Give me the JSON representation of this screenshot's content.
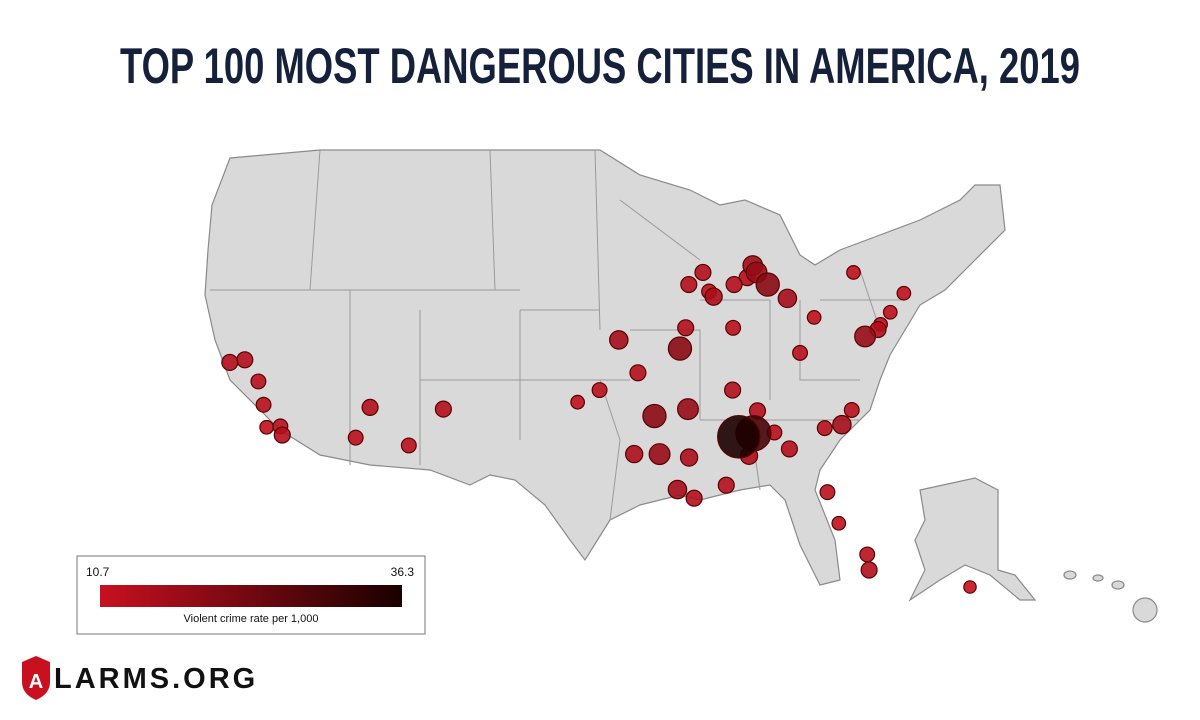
{
  "title": "TOP 100 MOST DANGEROUS CITIES IN AMERICA, 2019",
  "legend": {
    "min": 10.7,
    "max": 36.3,
    "label": "Violent crime rate per 1,000",
    "color_low": "#c8101f",
    "color_high": "#1a0000"
  },
  "logo": {
    "mark": "A",
    "text": "LARMS.ORG"
  },
  "cities": [
    {
      "lon": -121.3,
      "lat": 37.95,
      "rate": 14
    },
    {
      "lon": -122.3,
      "lat": 37.8,
      "rate": 14
    },
    {
      "lon": -119.8,
      "lat": 36.7,
      "rate": 13
    },
    {
      "lon": -118.2,
      "lat": 34.05,
      "rate": 12
    },
    {
      "lon": -117.3,
      "lat": 34.1,
      "rate": 13
    },
    {
      "lon": -117.0,
      "lat": 33.6,
      "rate": 14
    },
    {
      "lon": -118.9,
      "lat": 35.35,
      "rate": 13
    },
    {
      "lon": -112.1,
      "lat": 33.45,
      "rate": 13
    },
    {
      "lon": -111.6,
      "lat": 35.2,
      "rate": 14
    },
    {
      "lon": -106.6,
      "lat": 35.1,
      "rate": 14
    },
    {
      "lon": -108.5,
      "lat": 33.0,
      "rate": 13
    },
    {
      "lon": -96.0,
      "lat": 36.2,
      "rate": 13
    },
    {
      "lon": -97.5,
      "lat": 35.5,
      "rate": 12
    },
    {
      "lon": -94.6,
      "lat": 39.1,
      "rate": 16
    },
    {
      "lon": -90.2,
      "lat": 38.6,
      "rate": 20
    },
    {
      "lon": -93.3,
      "lat": 37.2,
      "rate": 14
    },
    {
      "lon": -92.3,
      "lat": 34.7,
      "rate": 20
    },
    {
      "lon": -90.0,
      "lat": 35.1,
      "rate": 18
    },
    {
      "lon": -90.2,
      "lat": 32.3,
      "rate": 15
    },
    {
      "lon": -93.75,
      "lat": 32.5,
      "rate": 15
    },
    {
      "lon": -92.1,
      "lat": 32.5,
      "rate": 18
    },
    {
      "lon": -91.1,
      "lat": 30.45,
      "rate": 16
    },
    {
      "lon": -90.1,
      "lat": 29.95,
      "rate": 14
    },
    {
      "lon": -88.0,
      "lat": 30.7,
      "rate": 14
    },
    {
      "lon": -86.8,
      "lat": 33.5,
      "rate": 36
    },
    {
      "lon": -85.8,
      "lat": 33.7,
      "rate": 30
    },
    {
      "lon": -86.3,
      "lat": 32.4,
      "rate": 15
    },
    {
      "lon": -85.3,
      "lat": 35.0,
      "rate": 14
    },
    {
      "lon": -86.8,
      "lat": 36.2,
      "rate": 14
    },
    {
      "lon": -84.4,
      "lat": 33.75,
      "rate": 13
    },
    {
      "lon": -83.6,
      "lat": 32.8,
      "rate": 14
    },
    {
      "lon": -81.0,
      "lat": 34.0,
      "rate": 13
    },
    {
      "lon": -79.8,
      "lat": 34.2,
      "rate": 16
    },
    {
      "lon": -78.9,
      "lat": 35.05,
      "rate": 13
    },
    {
      "lon": -81.7,
      "lat": 30.3,
      "rate": 13
    },
    {
      "lon": -80.2,
      "lat": 25.8,
      "rate": 14
    },
    {
      "lon": -80.1,
      "lat": 26.7,
      "rate": 13
    },
    {
      "lon": -81.4,
      "lat": 28.5,
      "rate": 12
    },
    {
      "lon": -81.7,
      "lat": 41.5,
      "rate": 16
    },
    {
      "lon": -83.0,
      "lat": 42.3,
      "rate": 20
    },
    {
      "lon": -83.7,
      "lat": 43.0,
      "rate": 18
    },
    {
      "lon": -83.9,
      "lat": 43.4,
      "rate": 17
    },
    {
      "lon": -84.5,
      "lat": 42.7,
      "rate": 14
    },
    {
      "lon": -85.6,
      "lat": 42.3,
      "rate": 14
    },
    {
      "lon": -87.6,
      "lat": 41.9,
      "rate": 13
    },
    {
      "lon": -89.1,
      "lat": 42.3,
      "rate": 14
    },
    {
      "lon": -87.9,
      "lat": 43.0,
      "rate": 14
    },
    {
      "lon": -86.15,
      "lat": 39.8,
      "rate": 13
    },
    {
      "lon": -87.3,
      "lat": 41.6,
      "rate": 15
    },
    {
      "lon": -89.65,
      "lat": 39.8,
      "rate": 14
    },
    {
      "lon": -75.2,
      "lat": 40.0,
      "rate": 12
    },
    {
      "lon": -76.6,
      "lat": 39.3,
      "rate": 18
    },
    {
      "lon": -75.5,
      "lat": 39.7,
      "rate": 14
    },
    {
      "lon": -74.2,
      "lat": 40.7,
      "rate": 12
    },
    {
      "lon": -72.7,
      "lat": 41.8,
      "rate": 12
    },
    {
      "lon": -80.0,
      "lat": 40.4,
      "rate": 12
    },
    {
      "lon": -81.6,
      "lat": 38.35,
      "rate": 13
    },
    {
      "lon": -76.1,
      "lat": 43.0,
      "rate": 12
    },
    {
      "lon": -149.9,
      "lat": 61.2,
      "rate": 11
    }
  ]
}
